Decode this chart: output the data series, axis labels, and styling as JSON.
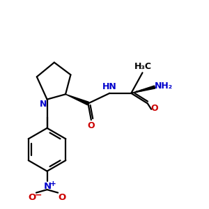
{
  "bg_color": "#ffffff",
  "line_color": "#000000",
  "blue_color": "#0000cc",
  "red_color": "#cc0000",
  "line_width": 1.6,
  "fig_size": [
    3.0,
    3.0
  ],
  "dpi": 100,
  "xlim": [
    0,
    10
  ],
  "ylim": [
    0,
    10
  ]
}
